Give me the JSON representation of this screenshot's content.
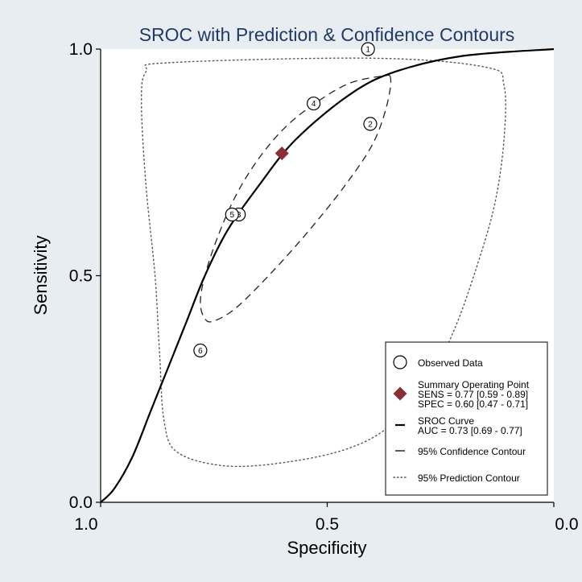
{
  "chart_data": {
    "type": "scatter",
    "title": "SROC with Prediction & Confidence Contours",
    "xlabel": "Specificity",
    "ylabel": "Sensitivity",
    "xlim": [
      1.0,
      0.0
    ],
    "ylim": [
      0.0,
      1.0
    ],
    "x_reversed": true,
    "x_ticks": [
      "1.0",
      "0.5",
      "0.0"
    ],
    "y_ticks": [
      "0.0",
      "0.5",
      "1.0"
    ],
    "grid": false,
    "legend_position": "bottom-right",
    "observed_data": [
      {
        "label": "1",
        "specificity": 0.41,
        "sensitivity": 1.0
      },
      {
        "label": "2",
        "specificity": 0.405,
        "sensitivity": 0.835
      },
      {
        "label": "3",
        "specificity": 0.695,
        "sensitivity": 0.635
      },
      {
        "label": "4",
        "specificity": 0.53,
        "sensitivity": 0.88
      },
      {
        "label": "5",
        "specificity": 0.71,
        "sensitivity": 0.635
      },
      {
        "label": "6",
        "specificity": 0.78,
        "sensitivity": 0.335
      }
    ],
    "summary_point": {
      "specificity": 0.6,
      "sensitivity": 0.77,
      "color": "#8b2e35"
    },
    "sroc_curve_points": [
      [
        1.0,
        0.0
      ],
      [
        0.97,
        0.03
      ],
      [
        0.93,
        0.1
      ],
      [
        0.89,
        0.2
      ],
      [
        0.85,
        0.3
      ],
      [
        0.81,
        0.4
      ],
      [
        0.77,
        0.5
      ],
      [
        0.72,
        0.6
      ],
      [
        0.65,
        0.7
      ],
      [
        0.57,
        0.8
      ],
      [
        0.45,
        0.9
      ],
      [
        0.35,
        0.95
      ],
      [
        0.2,
        0.985
      ],
      [
        0.0,
        1.0
      ]
    ],
    "confidence_contour_points": [
      [
        0.36,
        0.935
      ],
      [
        0.38,
        0.94
      ],
      [
        0.45,
        0.925
      ],
      [
        0.52,
        0.885
      ],
      [
        0.59,
        0.83
      ],
      [
        0.65,
        0.76
      ],
      [
        0.7,
        0.68
      ],
      [
        0.74,
        0.59
      ],
      [
        0.77,
        0.5
      ],
      [
        0.78,
        0.44
      ],
      [
        0.77,
        0.405
      ],
      [
        0.75,
        0.4
      ],
      [
        0.7,
        0.43
      ],
      [
        0.62,
        0.51
      ],
      [
        0.54,
        0.6
      ],
      [
        0.46,
        0.7
      ],
      [
        0.4,
        0.79
      ],
      [
        0.37,
        0.87
      ],
      [
        0.36,
        0.935
      ]
    ],
    "prediction_contour_points": [
      [
        0.85,
        0.97
      ],
      [
        0.4,
        0.98
      ],
      [
        0.15,
        0.96
      ],
      [
        0.11,
        0.92
      ],
      [
        0.11,
        0.8
      ],
      [
        0.13,
        0.66
      ],
      [
        0.17,
        0.52
      ],
      [
        0.22,
        0.38
      ],
      [
        0.28,
        0.26
      ],
      [
        0.36,
        0.17
      ],
      [
        0.45,
        0.12
      ],
      [
        0.58,
        0.09
      ],
      [
        0.72,
        0.08
      ],
      [
        0.83,
        0.11
      ],
      [
        0.86,
        0.18
      ],
      [
        0.87,
        0.33
      ],
      [
        0.88,
        0.5
      ],
      [
        0.9,
        0.7
      ],
      [
        0.91,
        0.88
      ],
      [
        0.9,
        0.95
      ],
      [
        0.85,
        0.97
      ]
    ],
    "legend": [
      {
        "key": "observed",
        "lines": [
          "Observed Data"
        ]
      },
      {
        "key": "summary",
        "lines": [
          "Summary Operating Point",
          "SENS = 0.77 [0.59 - 0.89]",
          "SPEC = 0.60 [0.47 - 0.71]"
        ]
      },
      {
        "key": "sroc",
        "lines": [
          "SROC Curve",
          "AUC = 0.73 [0.69 - 0.77]"
        ]
      },
      {
        "key": "confidence",
        "lines": [
          "95% Confidence Contour"
        ]
      },
      {
        "key": "prediction",
        "lines": [
          "95% Prediction Contour"
        ]
      }
    ],
    "colors": {
      "background": "#e8edf2",
      "plot_area": "#ffffff",
      "title": "#1f3b66",
      "summary": "#8b2e35"
    }
  }
}
